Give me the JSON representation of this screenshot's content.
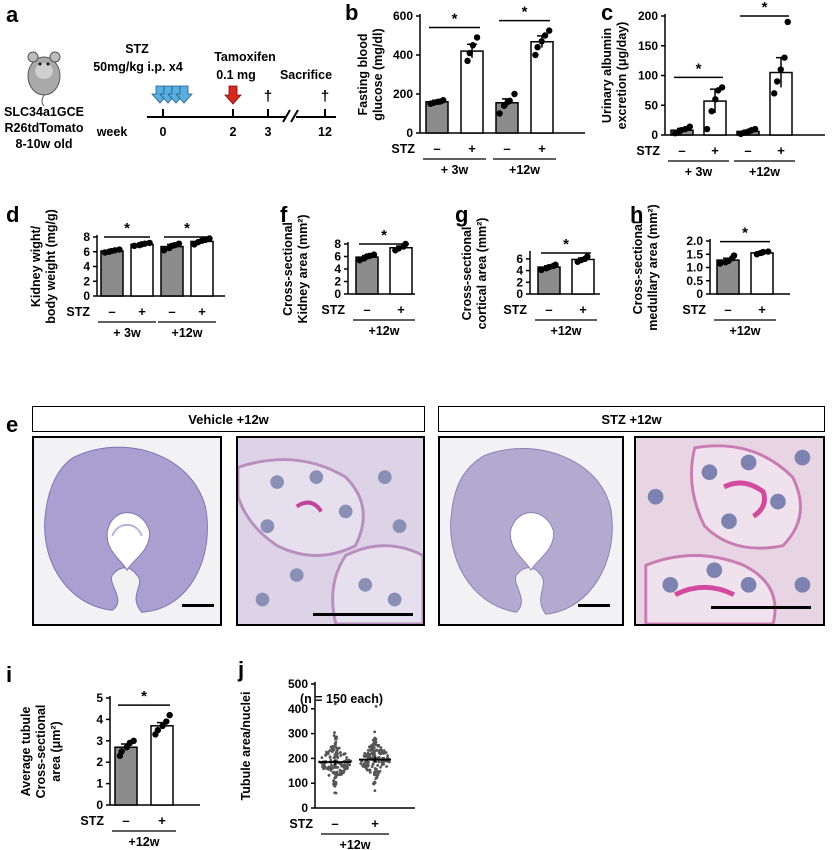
{
  "panels": {
    "a": {
      "letter": "a",
      "mouse_line1": "SLC34a1GCE",
      "mouse_line2": "R26tdTomato",
      "mouse_line3": "8-10w old",
      "stz_title": "STZ",
      "stz_dose": "50mg/kg i.p. x4",
      "tam_title": "Tamoxifen",
      "tam_dose": "0.1 mg",
      "sacrifice": "Sacrifice",
      "week_label": "week",
      "ticks": [
        "0",
        "2",
        "3",
        "12"
      ],
      "dagger": "†",
      "colors": {
        "stz_arrow": "#5aaee0",
        "tam_arrow": "#d42a1e"
      }
    },
    "e": {
      "letter": "e",
      "vehicle_header": "Vehicle +12w",
      "stz_header": "STZ +12w"
    }
  },
  "chart_data": [
    {
      "id": "b",
      "letter": "b",
      "type": "bar",
      "ylabel_lines": [
        "Fasting blood",
        "glucose (mg/dl)"
      ],
      "yticks": [
        0,
        200,
        400,
        600
      ],
      "ylim": [
        0,
        600
      ],
      "stz_label": "STZ",
      "stz_signs": [
        "–",
        "+",
        "–",
        "+"
      ],
      "groups": [
        "+ 3w",
        "+12w"
      ],
      "sig": "*",
      "bars": [
        {
          "value": 160,
          "err": 8,
          "fill": "#8c8c8c",
          "points": [
            150,
            155,
            160,
            162,
            168
          ]
        },
        {
          "value": 420,
          "err": 35,
          "fill": "#ffffff",
          "points": [
            370,
            410,
            450,
            490
          ]
        },
        {
          "value": 155,
          "err": 20,
          "fill": "#8c8c8c",
          "points": [
            100,
            140,
            160,
            165,
            200
          ]
        },
        {
          "value": 468,
          "err": 30,
          "fill": "#ffffff",
          "points": [
            400,
            440,
            470,
            500,
            525
          ]
        }
      ],
      "comparisons": [
        [
          0,
          1
        ],
        [
          2,
          3
        ]
      ]
    },
    {
      "id": "c",
      "letter": "c",
      "type": "bar",
      "ylabel_lines": [
        "Urinary albumin",
        "excretion (μg/day)"
      ],
      "yticks": [
        0,
        50,
        100,
        150,
        200
      ],
      "ylim": [
        0,
        200
      ],
      "stz_label": "STZ",
      "stz_signs": [
        "–",
        "+",
        "–",
        "+"
      ],
      "groups": [
        "+ 3w",
        "+12w"
      ],
      "sig": "*",
      "bars": [
        {
          "value": 8,
          "err": 3,
          "fill": "#8c8c8c",
          "points": [
            3,
            5,
            8,
            10,
            14
          ]
        },
        {
          "value": 57,
          "err": 20,
          "fill": "#ffffff",
          "points": [
            10,
            40,
            60,
            75,
            80
          ]
        },
        {
          "value": 6,
          "err": 2,
          "fill": "#8c8c8c",
          "points": [
            2,
            4,
            6,
            8,
            10
          ]
        },
        {
          "value": 105,
          "err": 25,
          "fill": "#ffffff",
          "points": [
            70,
            90,
            110,
            130,
            190
          ]
        }
      ],
      "comparisons": [
        [
          0,
          1
        ],
        [
          2,
          3
        ]
      ]
    },
    {
      "id": "d",
      "letter": "d",
      "type": "bar",
      "ylabel_lines": [
        "Kidney wight/",
        "body weight (mg/g)"
      ],
      "yticks": [
        0,
        2,
        4,
        6,
        8
      ],
      "ylim": [
        0,
        8
      ],
      "stz_label": "STZ",
      "stz_signs": [
        "–",
        "+",
        "–",
        "+"
      ],
      "groups": [
        "+ 3w",
        "+12w"
      ],
      "sig": "*",
      "bars": [
        {
          "value": 6.1,
          "err": 0.1,
          "fill": "#8c8c8c",
          "points": [
            5.9,
            6.0,
            6.1,
            6.2,
            6.3
          ]
        },
        {
          "value": 7.0,
          "err": 0.15,
          "fill": "#ffffff",
          "points": [
            6.8,
            6.9,
            7.0,
            7.1,
            7.2
          ]
        },
        {
          "value": 6.7,
          "err": 0.3,
          "fill": "#8c8c8c",
          "points": [
            6.2,
            6.5,
            6.8,
            6.9,
            7.1
          ]
        },
        {
          "value": 7.4,
          "err": 0.2,
          "fill": "#ffffff",
          "points": [
            7.0,
            7.3,
            7.5,
            7.6,
            7.8
          ]
        }
      ],
      "comparisons": [
        [
          0,
          1
        ],
        [
          2,
          3
        ]
      ]
    },
    {
      "id": "f",
      "letter": "f",
      "type": "bar",
      "ylabel_lines": [
        "Cross-sectional",
        "Kidney area (mm²)"
      ],
      "yticks": [
        0,
        2,
        4,
        6,
        8
      ],
      "ylim": [
        0,
        8
      ],
      "stz_label": "STZ",
      "stz_signs": [
        "–",
        "+"
      ],
      "groups": [
        "+12w"
      ],
      "sig": "*",
      "bars": [
        {
          "value": 5.9,
          "err": 0.25,
          "fill": "#8c8c8c",
          "points": [
            5.4,
            5.7,
            6.0,
            6.1,
            6.3
          ]
        },
        {
          "value": 7.4,
          "err": 0.25,
          "fill": "#ffffff",
          "points": [
            7.0,
            7.3,
            7.6,
            8.0
          ]
        }
      ],
      "comparisons": [
        [
          0,
          1
        ]
      ]
    },
    {
      "id": "g",
      "letter": "g",
      "type": "bar",
      "ylabel_lines": [
        "Cross-sectional",
        "cortical area (mm²)"
      ],
      "yticks": [
        0,
        2,
        4,
        6
      ],
      "ylim": [
        0,
        7
      ],
      "stz_label": "STZ",
      "stz_signs": [
        "–",
        "+"
      ],
      "groups": [
        "+12w"
      ],
      "sig": "*",
      "bars": [
        {
          "value": 4.6,
          "err": 0.2,
          "fill": "#8c8c8c",
          "points": [
            4.1,
            4.4,
            4.6,
            4.8,
            5.0
          ]
        },
        {
          "value": 5.9,
          "err": 0.25,
          "fill": "#ffffff",
          "points": [
            5.5,
            5.8,
            6.0,
            6.4
          ]
        }
      ],
      "comparisons": [
        [
          0,
          1
        ]
      ]
    },
    {
      "id": "h",
      "letter": "h",
      "type": "bar",
      "ylabel_lines": [
        "Cross-sectional",
        "medullary area (mm²)"
      ],
      "yticks": [
        0,
        0.5,
        1.0,
        1.5,
        2.0
      ],
      "ytick_labels": [
        "0",
        "0.5",
        "1.0",
        "1.5",
        "2.0"
      ],
      "ylim": [
        0,
        2.0
      ],
      "stz_label": "STZ",
      "stz_signs": [
        "–",
        "+"
      ],
      "groups": [
        "+12w"
      ],
      "sig": "*",
      "bars": [
        {
          "value": 1.28,
          "err": 0.07,
          "fill": "#8c8c8c",
          "points": [
            1.15,
            1.2,
            1.25,
            1.35,
            1.45
          ]
        },
        {
          "value": 1.55,
          "err": 0.04,
          "fill": "#ffffff",
          "points": [
            1.5,
            1.55,
            1.58,
            1.6
          ]
        }
      ],
      "comparisons": [
        [
          0,
          1
        ]
      ]
    },
    {
      "id": "i",
      "letter": "i",
      "type": "bar",
      "ylabel_lines": [
        "Average tubule",
        "Cross-sectional",
        "area (μm²)"
      ],
      "yticks": [
        0,
        1,
        2,
        3,
        4,
        5
      ],
      "ylim": [
        0,
        5
      ],
      "stz_label": "STZ",
      "stz_signs": [
        "–",
        "+"
      ],
      "groups": [
        "+12w"
      ],
      "sig": "*",
      "bars": [
        {
          "value": 2.7,
          "err": 0.15,
          "fill": "#8c8c8c",
          "points": [
            2.3,
            2.5,
            2.7,
            2.9,
            3.0
          ]
        },
        {
          "value": 3.7,
          "err": 0.15,
          "fill": "#ffffff",
          "points": [
            3.3,
            3.5,
            3.7,
            3.9,
            4.2
          ]
        }
      ],
      "comparisons": [
        [
          0,
          1
        ]
      ]
    },
    {
      "id": "j",
      "letter": "j",
      "type": "scatter",
      "ylabel_lines": [
        "Tubule area/nuclei"
      ],
      "annotation": "(n = 150 each)",
      "yticks": [
        0,
        100,
        200,
        300,
        400,
        500
      ],
      "ylim": [
        0,
        500
      ],
      "stz_label": "STZ",
      "stz_signs": [
        "–",
        "+"
      ],
      "groups": [
        "+12w"
      ],
      "groups_data": [
        {
          "mean": 185,
          "sd": 45,
          "n": 150,
          "max": 420,
          "min": 60
        },
        {
          "mean": 195,
          "sd": 42,
          "n": 150,
          "max": 410,
          "min": 70
        }
      ]
    }
  ]
}
